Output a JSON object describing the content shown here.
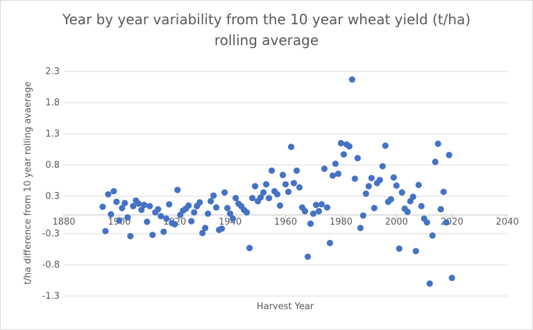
{
  "chart_data": {
    "type": "scatter",
    "title_lines": [
      "Year by year variability from the 10 year wheat yield (t/ha)",
      "rolling average"
    ],
    "xlabel": "Harvest Year",
    "ylabel": "t/ha difference from 10 year rolling avaerage",
    "xlim": [
      1880,
      2040
    ],
    "ylim": [
      -1.3,
      2.3
    ],
    "x_ticks": [
      1880,
      1900,
      1920,
      1940,
      1960,
      1980,
      2000,
      2020,
      2040
    ],
    "y_ticks": [
      -1.3,
      -0.8,
      -0.3,
      0.3,
      0.8,
      1.3,
      1.8,
      2.3
    ],
    "x_tick_labels": [
      "1880",
      "1900",
      "1920",
      "1940",
      "1960",
      "1980",
      "2000",
      "2020",
      "2040"
    ],
    "y_tick_labels": [
      "-1.3",
      "-0.8",
      "-0.3",
      "0.3",
      "0.8",
      "1.3",
      "1.8",
      "2.3"
    ],
    "grid": "horizontal",
    "marker_color": "#4472c4",
    "points": [
      [
        1894,
        0.13
      ],
      [
        1895,
        -0.26
      ],
      [
        1896,
        0.33
      ],
      [
        1897,
        0.01
      ],
      [
        1898,
        0.38
      ],
      [
        1899,
        0.21
      ],
      [
        1900,
        -0.09
      ],
      [
        1901,
        0.11
      ],
      [
        1902,
        0.19
      ],
      [
        1903,
        -0.04
      ],
      [
        1904,
        -0.34
      ],
      [
        1905,
        0.14
      ],
      [
        1906,
        0.23
      ],
      [
        1907,
        0.18
      ],
      [
        1908,
        0.08
      ],
      [
        1909,
        0.16
      ],
      [
        1910,
        -0.11
      ],
      [
        1911,
        0.14
      ],
      [
        1912,
        -0.32
      ],
      [
        1913,
        0.04
      ],
      [
        1914,
        0.09
      ],
      [
        1915,
        -0.02
      ],
      [
        1916,
        -0.27
      ],
      [
        1917,
        -0.06
      ],
      [
        1918,
        0.17
      ],
      [
        1919,
        -0.13
      ],
      [
        1920,
        -0.15
      ],
      [
        1921,
        0.4
      ],
      [
        1922,
        0.0
      ],
      [
        1923,
        0.07
      ],
      [
        1924,
        0.1
      ],
      [
        1925,
        0.15
      ],
      [
        1926,
        -0.1
      ],
      [
        1927,
        0.04
      ],
      [
        1928,
        0.14
      ],
      [
        1929,
        0.2
      ],
      [
        1930,
        -0.29
      ],
      [
        1931,
        -0.21
      ],
      [
        1932,
        0.02
      ],
      [
        1933,
        0.22
      ],
      [
        1934,
        0.31
      ],
      [
        1935,
        0.12
      ],
      [
        1936,
        -0.24
      ],
      [
        1937,
        -0.22
      ],
      [
        1938,
        0.36
      ],
      [
        1939,
        0.11
      ],
      [
        1940,
        0.02
      ],
      [
        1941,
        -0.06
      ],
      [
        1942,
        0.27
      ],
      [
        1943,
        0.18
      ],
      [
        1944,
        0.14
      ],
      [
        1945,
        0.08
      ],
      [
        1946,
        0.04
      ],
      [
        1947,
        -0.53
      ],
      [
        1948,
        0.27
      ],
      [
        1949,
        0.46
      ],
      [
        1950,
        0.22
      ],
      [
        1951,
        0.28
      ],
      [
        1952,
        0.36
      ],
      [
        1953,
        0.49
      ],
      [
        1954,
        0.27
      ],
      [
        1955,
        0.71
      ],
      [
        1956,
        0.38
      ],
      [
        1957,
        0.33
      ],
      [
        1958,
        0.15
      ],
      [
        1959,
        0.64
      ],
      [
        1960,
        0.49
      ],
      [
        1961,
        0.37
      ],
      [
        1962,
        1.09
      ],
      [
        1963,
        0.51
      ],
      [
        1964,
        0.71
      ],
      [
        1965,
        0.44
      ],
      [
        1966,
        0.12
      ],
      [
        1967,
        0.06
      ],
      [
        1968,
        -0.67
      ],
      [
        1969,
        -0.14
      ],
      [
        1970,
        0.02
      ],
      [
        1971,
        0.16
      ],
      [
        1972,
        0.06
      ],
      [
        1973,
        0.17
      ],
      [
        1974,
        0.74
      ],
      [
        1975,
        0.12
      ],
      [
        1976,
        -0.45
      ],
      [
        1977,
        0.63
      ],
      [
        1978,
        0.82
      ],
      [
        1979,
        0.66
      ],
      [
        1980,
        1.15
      ],
      [
        1981,
        0.97
      ],
      [
        1982,
        1.13
      ],
      [
        1983,
        1.1
      ],
      [
        1984,
        2.17
      ],
      [
        1985,
        0.58
      ],
      [
        1986,
        0.91
      ],
      [
        1987,
        -0.21
      ],
      [
        1988,
        -0.01
      ],
      [
        1989,
        0.34
      ],
      [
        1990,
        0.46
      ],
      [
        1991,
        0.59
      ],
      [
        1992,
        0.11
      ],
      [
        1993,
        0.51
      ],
      [
        1994,
        0.56
      ],
      [
        1995,
        0.78
      ],
      [
        1996,
        1.11
      ],
      [
        1997,
        0.21
      ],
      [
        1998,
        0.25
      ],
      [
        1999,
        0.6
      ],
      [
        2000,
        0.47
      ],
      [
        2001,
        -0.54
      ],
      [
        2002,
        0.36
      ],
      [
        2003,
        0.1
      ],
      [
        2004,
        0.05
      ],
      [
        2005,
        0.22
      ],
      [
        2006,
        0.29
      ],
      [
        2007,
        -0.58
      ],
      [
        2008,
        0.48
      ],
      [
        2009,
        0.14
      ],
      [
        2010,
        -0.06
      ],
      [
        2011,
        -0.12
      ],
      [
        2012,
        -1.1
      ],
      [
        2013,
        -0.33
      ],
      [
        2014,
        0.85
      ],
      [
        2015,
        1.14
      ],
      [
        2016,
        0.09
      ],
      [
        2017,
        0.37
      ],
      [
        2018,
        -0.12
      ],
      [
        2019,
        0.96
      ],
      [
        2020,
        -1.01
      ]
    ]
  }
}
